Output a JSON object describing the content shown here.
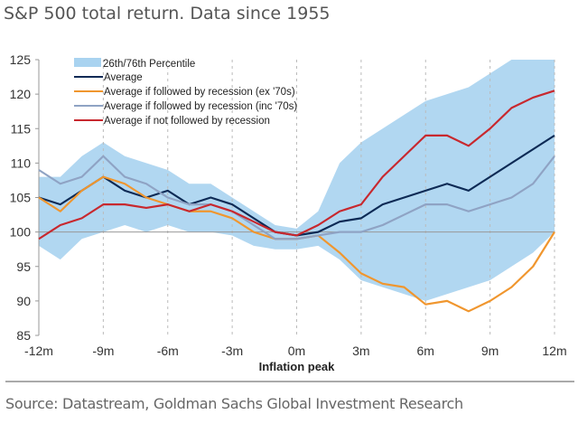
{
  "title": "S&P 500 total return. Data since 1955",
  "source": "Source: Datastream, Goldman Sachs Global Investment Research",
  "chart_data": {
    "type": "line",
    "xlabel": "Inflation peak",
    "ylabel": "",
    "x": [
      -12,
      -11,
      -10,
      -9,
      -8,
      -7,
      -6,
      -5,
      -4,
      -3,
      -2,
      -1,
      0,
      1,
      2,
      3,
      4,
      5,
      6,
      7,
      8,
      9,
      10,
      11,
      12
    ],
    "xticks": [
      -12,
      -9,
      -6,
      -3,
      0,
      3,
      6,
      9,
      12
    ],
    "xtick_labels": [
      "-12m",
      "-9m",
      "-6m",
      "-3m",
      "0m",
      "3m",
      "6m",
      "9m",
      "12m"
    ],
    "yticks": [
      85,
      90,
      95,
      100,
      105,
      110,
      115,
      120,
      125
    ],
    "ylim": [
      85,
      125
    ],
    "xlim": [
      -12,
      12
    ],
    "legend_placement": "top-left",
    "band": {
      "name": "26th/76th Percentile",
      "color": "#a9d3f0",
      "upper": [
        108,
        108,
        111,
        113,
        111,
        110,
        109,
        107,
        107,
        105,
        103,
        101,
        100.5,
        103,
        110,
        113,
        115,
        117,
        119,
        120,
        121,
        123,
        125,
        125,
        125
      ],
      "lower": [
        98,
        96,
        99,
        100,
        101,
        100,
        101,
        100,
        100,
        99.5,
        98,
        97.5,
        97.5,
        98,
        96,
        93,
        92,
        91,
        90,
        91,
        92,
        93,
        95,
        97,
        100
      ]
    },
    "series": [
      {
        "name": "Average",
        "color": "#0d2a55",
        "values": [
          105,
          104,
          106,
          108,
          106,
          105,
          106,
          104,
          105,
          104,
          102,
          100,
          99.5,
          100,
          101.5,
          102,
          104,
          105,
          106,
          107,
          106,
          108,
          110,
          112,
          114
        ]
      },
      {
        "name": "Average if followed by recession (ex '70s)",
        "color": "#f0962e",
        "values": [
          105,
          103,
          106,
          108,
          107,
          105,
          104,
          103,
          103,
          102,
          100,
          99,
          99,
          99.5,
          97,
          94,
          92.5,
          92,
          89.5,
          90,
          88.5,
          90,
          92,
          95,
          100
        ]
      },
      {
        "name": "Average if followed by recession (inc '70s)",
        "color": "#8fa3c4",
        "values": [
          109,
          107,
          108,
          111,
          108,
          107,
          105,
          104,
          104,
          103,
          101,
          99,
          99,
          99.5,
          100,
          100,
          101,
          102.5,
          104,
          104,
          103,
          104,
          105,
          107,
          111
        ]
      },
      {
        "name": "Average if not followed by recession",
        "color": "#c8282e",
        "values": [
          99,
          101,
          102,
          104,
          104,
          103.5,
          104,
          103,
          104,
          103,
          101.5,
          100,
          99.5,
          101,
          103,
          104,
          108,
          111,
          114,
          114,
          112.5,
          115,
          118,
          119.5,
          120.5
        ]
      }
    ]
  }
}
